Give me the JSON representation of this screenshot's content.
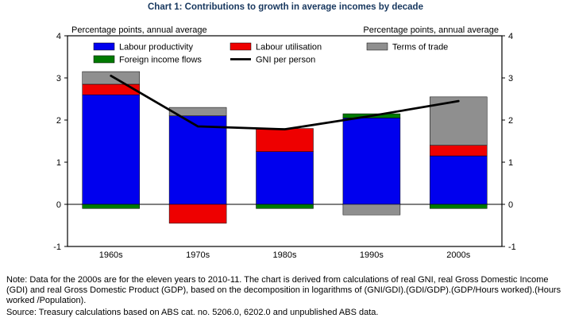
{
  "title": "Chart 1: Contributions to growth in average incomes by decade",
  "note": "Note: Data for the 2000s are for the eleven years to 2010-11. The chart is derived from calculations of real GNI, real Gross Domestic Income (GDI) and real Gross Domestic Product (GDP), based on the decomposition in logarithms of (GNI/GDI).(GDI/GDP).(GDP/Hours worked).(Hours worked /Population).",
  "source": "Source: Treasury calculations based on ABS cat. no. 5206.0, 6202.0 and unpublished ABS data.",
  "colors": {
    "title_text": "#17375e",
    "labour_productivity": "#0000ee",
    "labour_utilisation": "#ee0000",
    "terms_of_trade": "#8f8f8f",
    "foreign_income_flows": "#007a00",
    "gni_line": "#000000",
    "axis": "#000000"
  },
  "chart_data": {
    "type": "bar",
    "stacked": true,
    "title": "Chart 1: Contributions to growth in average incomes by decade",
    "categories": [
      "1960s",
      "1970s",
      "1980s",
      "1990s",
      "2000s"
    ],
    "series": [
      {
        "name": "Labour productivity",
        "color": "#0000ee",
        "values": [
          2.6,
          2.1,
          1.25,
          2.05,
          1.15
        ]
      },
      {
        "name": "Labour utilisation",
        "color": "#ee0000",
        "values": [
          0.25,
          -0.45,
          0.55,
          0,
          0.25
        ]
      },
      {
        "name": "Terms of trade",
        "color": "#8f8f8f",
        "values": [
          0.3,
          0.2,
          0,
          -0.25,
          1.15
        ]
      },
      {
        "name": "Foreign income flows",
        "color": "#007a00",
        "values": [
          -0.1,
          0,
          -0.1,
          0.1,
          -0.1
        ]
      }
    ],
    "line_series": {
      "name": "GNI per person",
      "color": "#000000",
      "values": [
        3.05,
        1.85,
        1.78,
        2.1,
        2.45
      ]
    },
    "ylim": [
      -1,
      4
    ],
    "yticks": [
      4,
      3,
      2,
      1,
      0,
      -1
    ],
    "left_axis_caption": "Percentage points, annual average",
    "right_axis_caption": "Percentage points, annual average",
    "grid": false,
    "legend_position": "top-inside"
  }
}
